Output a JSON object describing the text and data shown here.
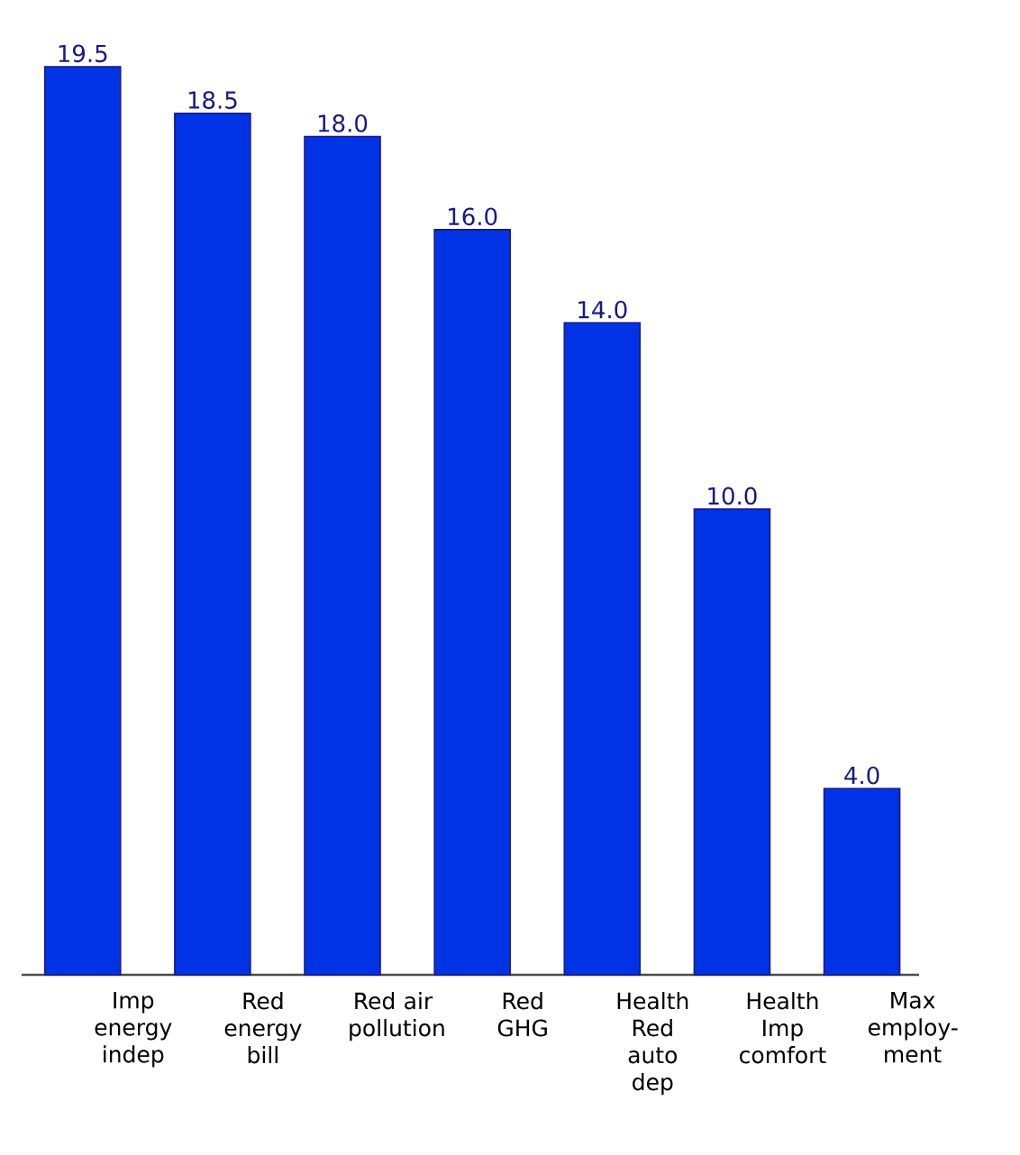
{
  "chart_data": {
    "type": "bar",
    "categories": [
      "Imp energy indep",
      "Red energy bill",
      "Red air pollution",
      "Red GHG",
      "Health Red auto dep",
      "Health Imp comfort",
      "Max employ-ment"
    ],
    "values": [
      19.5,
      18.5,
      18.0,
      16.0,
      14.0,
      10.0,
      4.0
    ],
    "value_labels": [
      "19.5",
      "18.5",
      "18.0",
      "16.0",
      "14.0",
      "10.0",
      "4.0"
    ],
    "color": "#0033e6",
    "tick_labels": "x"
  }
}
